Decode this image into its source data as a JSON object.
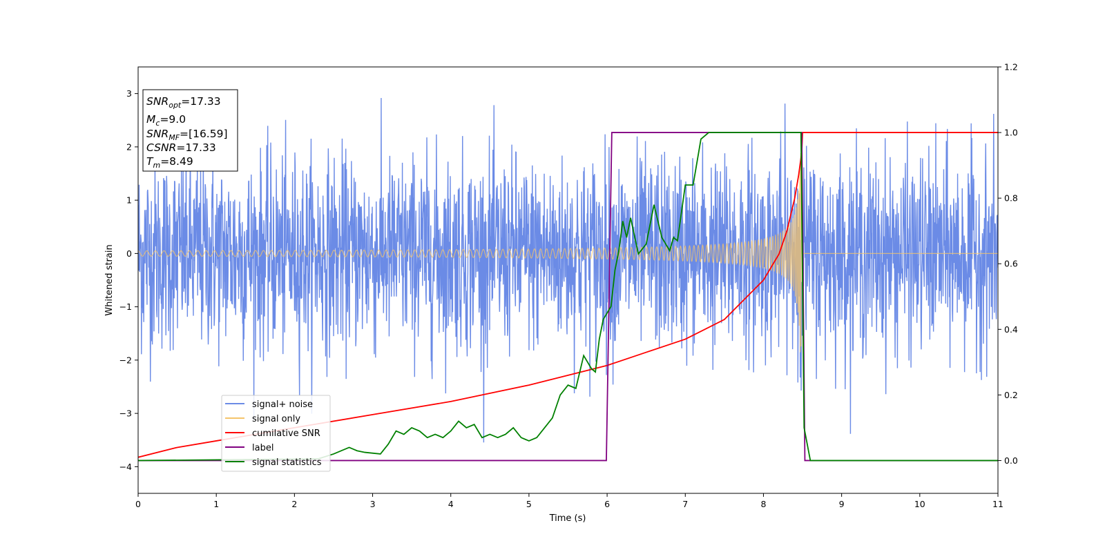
{
  "chart_data": {
    "type": "line",
    "title": "",
    "xlabel": "Time (s)",
    "ylabel": "Whitened strain",
    "xlim": [
      0,
      11
    ],
    "ylim": [
      -4.5,
      3.5
    ],
    "y2lim": [
      -0.1,
      1.2
    ],
    "x_ticks": [
      0,
      1,
      2,
      3,
      4,
      5,
      6,
      7,
      8,
      9,
      10,
      11
    ],
    "y_ticks": [
      -4,
      -3,
      -2,
      -1,
      0,
      1,
      2,
      3
    ],
    "y2_ticks": [
      0.0,
      0.2,
      0.4,
      0.6,
      0.8,
      1.0,
      1.2
    ],
    "y_tick_labels": [
      "−4",
      "−3",
      "−2",
      "−1",
      "0",
      "1",
      "2",
      "3"
    ],
    "y2_tick_labels": [
      "0.0",
      "0.2",
      "0.4",
      "0.6",
      "0.8",
      "1.0",
      "1.2"
    ],
    "grid": false,
    "legend_position": "lower-left",
    "info_box": {
      "snr_opt": {
        "base": "SNR",
        "sub": "opt",
        "value": "=17.33"
      },
      "mc": {
        "base": "M",
        "sub": "c",
        "value": "=9.0"
      },
      "snr_mf": {
        "base": "SNR",
        "sub": "MF",
        "value": "=[16.59]"
      },
      "csnr": {
        "base": "CSNR",
        "sub": "",
        "value": "=17.33"
      },
      "tm": {
        "base": "T",
        "sub": "m",
        "value": "=8.49"
      }
    },
    "series": [
      {
        "name": "signal+ noise",
        "color": "#6b8be6",
        "axis": "left",
        "kind": "noise",
        "t_end": 11,
        "noise_std": 0.9,
        "peak_range": [
          -4.2,
          3.2
        ]
      },
      {
        "name": "signal only",
        "color": "#f5c46a",
        "axis": "left",
        "kind": "chirp",
        "t_merge": 8.49,
        "start_amplitude": 0.05,
        "peak_amplitude": 1.9
      },
      {
        "name": "cumilative SNR",
        "color": "#ff0000",
        "axis": "right",
        "x": [
          0,
          0.5,
          1,
          2,
          3,
          4,
          5,
          6,
          6.5,
          7,
          7.5,
          8,
          8.2,
          8.3,
          8.4,
          8.45,
          8.49,
          8.5,
          11
        ],
        "values": [
          0.01,
          0.04,
          0.06,
          0.1,
          0.14,
          0.18,
          0.23,
          0.29,
          0.33,
          0.37,
          0.43,
          0.55,
          0.63,
          0.7,
          0.8,
          0.87,
          0.94,
          1.0,
          1.0
        ]
      },
      {
        "name": "label",
        "color": "#800080",
        "axis": "right",
        "x": [
          0,
          5.99,
          6.06,
          8.49,
          8.53,
          11
        ],
        "values": [
          0,
          0,
          1,
          1,
          0,
          0
        ]
      },
      {
        "name": "signal statistics",
        "color": "#008000",
        "axis": "right",
        "x": [
          0,
          2.3,
          2.5,
          2.7,
          2.8,
          2.9,
          3.1,
          3.2,
          3.3,
          3.4,
          3.5,
          3.6,
          3.7,
          3.8,
          3.9,
          4.0,
          4.1,
          4.2,
          4.3,
          4.4,
          4.5,
          4.6,
          4.7,
          4.8,
          4.9,
          5.0,
          5.1,
          5.2,
          5.3,
          5.4,
          5.5,
          5.6,
          5.7,
          5.8,
          5.85,
          5.9,
          5.95,
          6.0,
          6.05,
          6.1,
          6.15,
          6.2,
          6.25,
          6.3,
          6.4,
          6.5,
          6.6,
          6.7,
          6.8,
          6.85,
          6.9,
          7.0,
          7.1,
          7.2,
          7.3,
          7.4,
          7.5,
          7.6,
          7.8,
          8.0,
          8.2,
          8.4,
          8.45,
          8.48,
          8.52,
          8.6,
          11
        ],
        "values": [
          0,
          0.005,
          0.02,
          0.04,
          0.03,
          0.025,
          0.02,
          0.05,
          0.09,
          0.08,
          0.1,
          0.09,
          0.07,
          0.08,
          0.07,
          0.09,
          0.12,
          0.1,
          0.11,
          0.07,
          0.08,
          0.07,
          0.08,
          0.1,
          0.07,
          0.06,
          0.07,
          0.1,
          0.13,
          0.2,
          0.23,
          0.22,
          0.32,
          0.28,
          0.27,
          0.37,
          0.43,
          0.45,
          0.47,
          0.58,
          0.64,
          0.73,
          0.68,
          0.74,
          0.63,
          0.66,
          0.78,
          0.68,
          0.64,
          0.68,
          0.67,
          0.84,
          0.84,
          0.98,
          1.0,
          1.0,
          1.0,
          1.0,
          1.0,
          1.0,
          1.0,
          1.0,
          1.0,
          1.0,
          0.1,
          0.0,
          0.0
        ]
      }
    ]
  }
}
